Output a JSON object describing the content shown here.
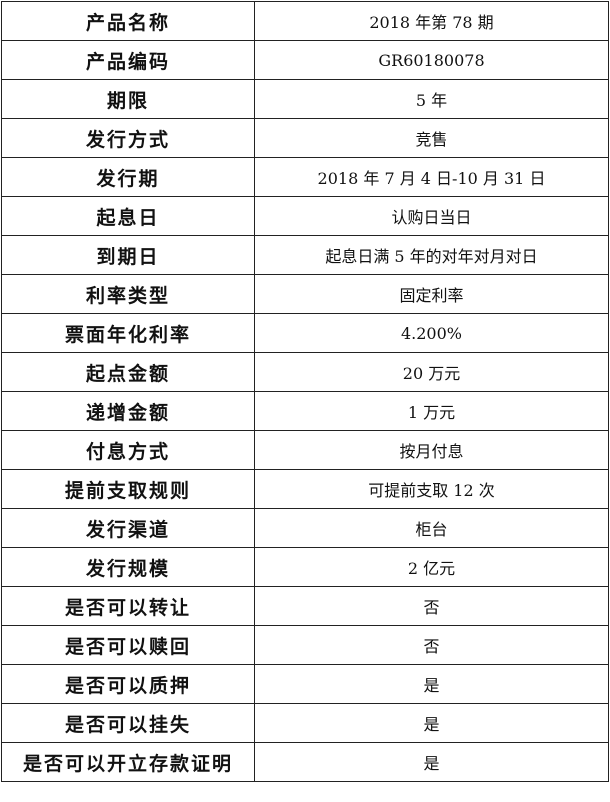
{
  "rows": [
    {
      "label": "产品名称",
      "value": "2018 年第 78 期"
    },
    {
      "label": "产品编码",
      "value": "GR60180078"
    },
    {
      "label": "期限",
      "value": "5 年"
    },
    {
      "label": "发行方式",
      "value": "竞售"
    },
    {
      "label": "发行期",
      "value": "2018 年 7 月 4 日-10 月 31 日"
    },
    {
      "label": "起息日",
      "value": "认购日当日"
    },
    {
      "label": "到期日",
      "value": "起息日满 5 年的对年对月对日"
    },
    {
      "label": "利率类型",
      "value": "固定利率"
    },
    {
      "label": "票面年化利率",
      "value": "4.200%"
    },
    {
      "label": "起点金额",
      "value": "20 万元"
    },
    {
      "label": "递增金额",
      "value": "1 万元"
    },
    {
      "label": "付息方式",
      "value": "按月付息"
    },
    {
      "label": "提前支取规则",
      "value": "可提前支取 12 次"
    },
    {
      "label": "发行渠道",
      "value": "柜台"
    },
    {
      "label": "发行规模",
      "value": "2 亿元"
    },
    {
      "label": "是否可以转让",
      "value": "否"
    },
    {
      "label": "是否可以赎回",
      "value": "否"
    },
    {
      "label": "是否可以质押",
      "value": "是"
    },
    {
      "label": "是否可以挂失",
      "value": "是"
    },
    {
      "label": "是否可以开立存款证明",
      "value": "是"
    }
  ]
}
